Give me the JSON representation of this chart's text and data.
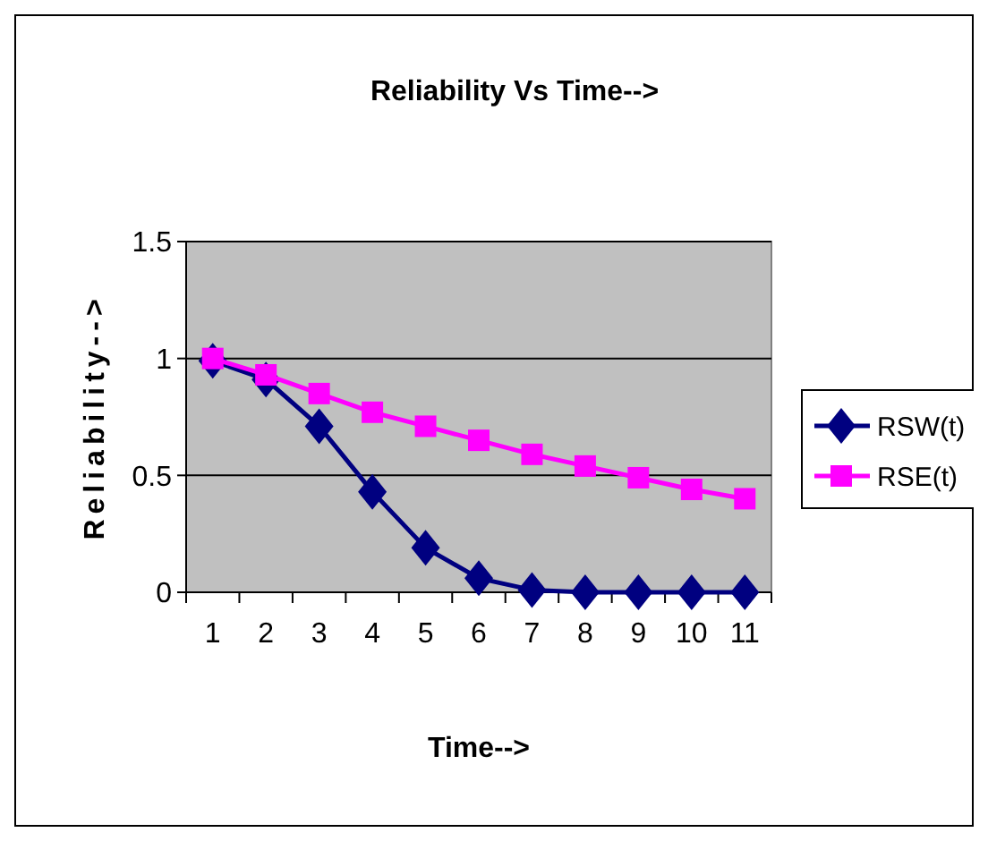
{
  "chart_data": {
    "type": "line",
    "title": "Reliability Vs Time-->",
    "xlabel": "Time-->",
    "ylabel": "Reliability-->",
    "categories": [
      "1",
      "2",
      "3",
      "4",
      "5",
      "6",
      "7",
      "8",
      "9",
      "10",
      "11"
    ],
    "series": [
      {
        "name": "RSW(t)",
        "color": "#000080",
        "marker": "diamond",
        "values": [
          0.99,
          0.91,
          0.71,
          0.43,
          0.19,
          0.06,
          0.01,
          0,
          0,
          0,
          0
        ]
      },
      {
        "name": "RSE(t)",
        "color": "#ff00ff",
        "marker": "square",
        "values": [
          1.0,
          0.93,
          0.85,
          0.77,
          0.71,
          0.65,
          0.59,
          0.54,
          0.49,
          0.44,
          0.4
        ]
      }
    ],
    "ylim": [
      0,
      1.5
    ],
    "yticks": [
      0,
      0.5,
      1,
      1.5
    ],
    "grid": "y",
    "legend": "right"
  }
}
